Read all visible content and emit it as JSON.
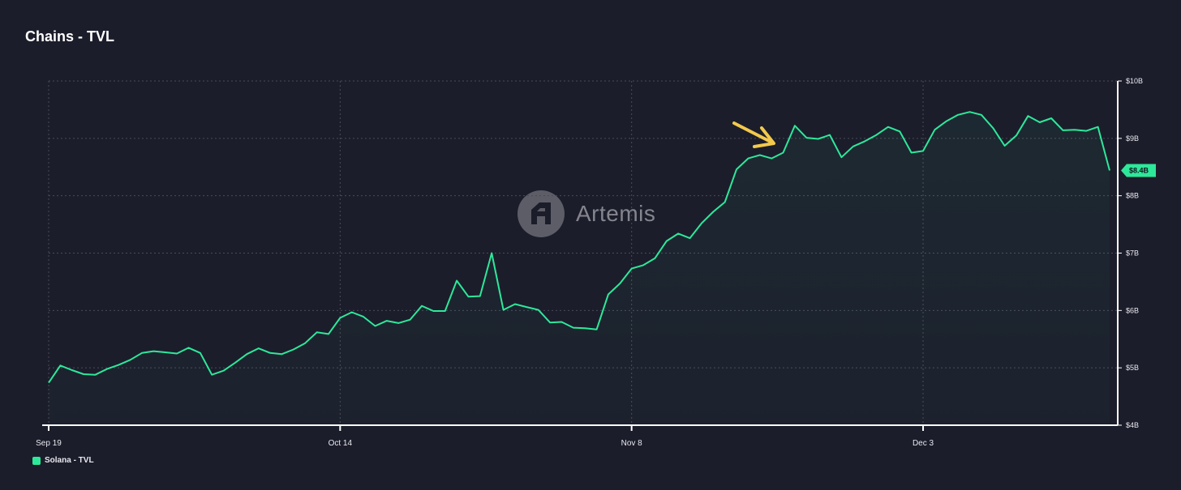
{
  "chart_data": {
    "type": "line",
    "title": "Chains - TVL",
    "x_ticks": [
      "Sep 19",
      "Oct 14",
      "Nov 8",
      "Dec 3"
    ],
    "y_ticks": [
      "$4B",
      "$5B",
      "$6B",
      "$7B",
      "$8B",
      "$9B",
      "$10B"
    ],
    "ylim": [
      4,
      10
    ],
    "y_unit": "$B",
    "grid": true,
    "legend_position": "bottom-left",
    "last_value_label": "$8.4B",
    "series": [
      {
        "name": "Solana - TVL",
        "color": "#2ee89a",
        "values": [
          4.74,
          5.04,
          4.96,
          4.89,
          4.88,
          4.98,
          5.05,
          5.14,
          5.26,
          5.29,
          5.27,
          5.25,
          5.35,
          5.26,
          4.88,
          4.95,
          5.09,
          5.24,
          5.34,
          5.26,
          5.24,
          5.32,
          5.43,
          5.62,
          5.59,
          5.87,
          5.97,
          5.89,
          5.73,
          5.82,
          5.78,
          5.84,
          6.08,
          5.99,
          5.99,
          6.52,
          6.24,
          6.25,
          7.0,
          6.01,
          6.11,
          6.06,
          6.01,
          5.79,
          5.8,
          5.7,
          5.69,
          5.67,
          6.28,
          6.47,
          6.73,
          6.79,
          6.91,
          7.21,
          7.34,
          7.26,
          7.52,
          7.72,
          7.89,
          8.46,
          8.65,
          8.71,
          8.65,
          8.75,
          9.22,
          9.01,
          8.99,
          9.06,
          8.67,
          8.86,
          8.95,
          9.06,
          9.2,
          9.12,
          8.75,
          8.78,
          9.15,
          9.3,
          9.41,
          9.46,
          9.41,
          9.18,
          8.87,
          9.05,
          9.39,
          9.28,
          9.35,
          9.14,
          9.15,
          9.13,
          9.2,
          8.44
        ]
      }
    ]
  },
  "watermark": {
    "text": "Artemis"
  },
  "annotation": {
    "type": "arrow",
    "color": "#f2c94c"
  }
}
